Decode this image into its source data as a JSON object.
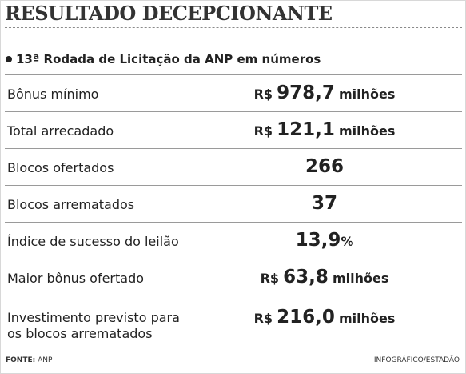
{
  "header": {
    "title": "RESULTADO DECEPCIONANTE",
    "subtitle": "13ª Rodada de Licitação da ANP em números"
  },
  "chart_data": {
    "type": "table",
    "title": "RESULTADO DECEPCIONANTE",
    "subtitle": "13ª Rodada de Licitação da ANP em números",
    "rows": [
      {
        "label": "Bônus mínimo",
        "currency": "R$",
        "number": "978,7",
        "unit": "milhões",
        "value": 978.7
      },
      {
        "label": "Total arrecadado",
        "currency": "R$",
        "number": "121,1",
        "unit": "milhões",
        "value": 121.1
      },
      {
        "label": "Blocos ofertados",
        "currency": "",
        "number": "266",
        "unit": "",
        "value": 266
      },
      {
        "label": "Blocos arrematados",
        "currency": "",
        "number": "37",
        "unit": "",
        "value": 37
      },
      {
        "label": "Índice de sucesso do leilão",
        "currency": "",
        "number": "13,9",
        "unit": "%",
        "value": 13.9
      },
      {
        "label": "Maior bônus ofertado",
        "currency": "R$",
        "number": "63,8",
        "unit": "milhões",
        "value": 63.8
      },
      {
        "label": "Investimento previsto para os blocos arrematados",
        "currency": "R$",
        "number": "216,0",
        "unit": "milhões",
        "value": 216.0
      }
    ]
  },
  "footer": {
    "source_label": "FONTE:",
    "source_value": "ANP",
    "credit": "INFOGRÁFICO/ESTADÃO"
  }
}
